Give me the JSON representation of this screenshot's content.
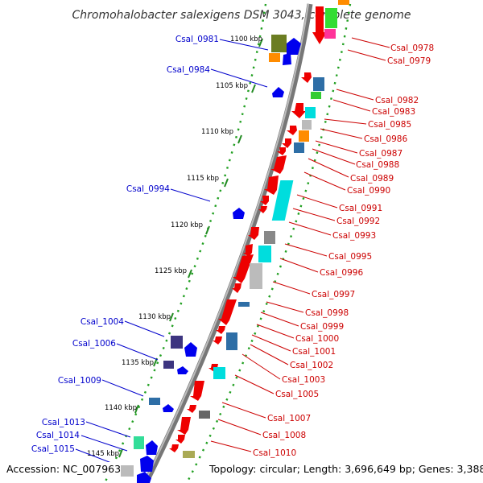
{
  "title": "Chromohalobacter salexigens DSM 3043, complete genome",
  "accession": "Accession: NC_007963",
  "topology": "Topology: circular; Length: 3,696,649 bp; Genes: 3,388",
  "colors": {
    "backbone": "#888888",
    "ticks": "#228b22",
    "forward_gene": "#0000ee",
    "reverse_gene": "#ee0000",
    "left_label": "#0000cc",
    "right_label": "#cc0000"
  },
  "kbp_ticks": [
    "1100 kbp",
    "1105 kbp",
    "1110 kbp",
    "1115 kbp",
    "1120 kbp",
    "1125 kbp",
    "1130 kbp",
    "1135 kbp",
    "1140 kbp",
    "1145 kbp"
  ],
  "left_labels": [
    "Csal_0981",
    "Csal_0984",
    "Csal_0994",
    "Csal_1004",
    "Csal_1006",
    "Csal_1009",
    "Csal_1013",
    "Csal_1014",
    "Csal_1015"
  ],
  "right_labels": [
    "Csal_0978",
    "Csal_0979",
    "Csal_0982",
    "Csal_0983",
    "Csal_0985",
    "Csal_0986",
    "Csal_0987",
    "Csal_0988",
    "Csal_0989",
    "Csal_0990",
    "Csal_0991",
    "Csal_0992",
    "Csal_0993",
    "Csal_0995",
    "Csal_0996",
    "Csal_0997",
    "Csal_0998",
    "Csal_0999",
    "Csal_1000",
    "Csal_1001",
    "Csal_1002",
    "Csal_1003",
    "Csal_1005",
    "Csal_1007",
    "Csal_1008",
    "Csal_1010"
  ]
}
